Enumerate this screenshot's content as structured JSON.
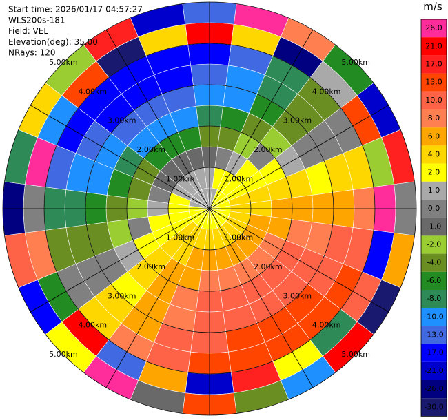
{
  "chart_data": {
    "type": "ppi",
    "header": [
      "Start time: 2026/01/17 04:57:27",
      "WLS200s-181",
      "Field: VEL",
      "Elevation(deg): 35.00",
      "NRays: 120"
    ],
    "unit": "m/s",
    "colorbar": {
      "ticks": [
        {
          "value": 26,
          "label": "26.0",
          "color": "#ff2d9b"
        },
        {
          "value": 21,
          "label": "21.0",
          "color": "#ff0000"
        },
        {
          "value": 17,
          "label": "17.0",
          "color": "#ff2020"
        },
        {
          "value": 13,
          "label": "13.0",
          "color": "#ff4500"
        },
        {
          "value": 10,
          "label": "10.0",
          "color": "#ff6347"
        },
        {
          "value": 8,
          "label": "8.0",
          "color": "#ff7f50"
        },
        {
          "value": 6,
          "label": "6.0",
          "color": "#ffa500"
        },
        {
          "value": 4,
          "label": "4.0",
          "color": "#ffd700"
        },
        {
          "value": 2,
          "label": "2.0",
          "color": "#ffff00"
        },
        {
          "value": 1,
          "label": "1.0",
          "color": "#a9a9a9"
        },
        {
          "value": 0,
          "label": "0.0",
          "color": "#808080"
        },
        {
          "value": -1,
          "label": "-1.0",
          "color": "#696969"
        },
        {
          "value": -2,
          "label": "-2.0",
          "color": "#9acd32"
        },
        {
          "value": -4,
          "label": "-4.0",
          "color": "#6b8e23"
        },
        {
          "value": -6,
          "label": "-6.0",
          "color": "#228b22"
        },
        {
          "value": -8,
          "label": "-8.0",
          "color": "#2e8b57"
        },
        {
          "value": -10,
          "label": "-10.0",
          "color": "#1e90ff"
        },
        {
          "value": -13,
          "label": "-13.0",
          "color": "#4169e1"
        },
        {
          "value": -17,
          "label": "-17.0",
          "color": "#0000ff"
        },
        {
          "value": -21,
          "label": "-21.0",
          "color": "#0000cd"
        },
        {
          "value": -26,
          "label": "-26.0",
          "color": "#000080"
        },
        {
          "value": -30,
          "label": "-30.0",
          "color": "#191970"
        }
      ]
    },
    "range_rings": [
      {
        "value": 1,
        "label": "1.00km"
      },
      {
        "value": 2,
        "label": "2.00km"
      },
      {
        "value": 3,
        "label": "3.00km"
      },
      {
        "value": 4,
        "label": "4.00km"
      },
      {
        "value": 5,
        "label": "5.00km"
      }
    ],
    "rmax": 5,
    "azimuths": [
      0,
      15,
      30,
      45,
      60,
      75,
      90,
      105,
      120,
      135,
      150,
      165,
      180,
      195,
      210,
      225,
      240,
      255,
      270,
      285,
      300,
      315,
      330,
      345
    ],
    "ranges": [
      0,
      0.5,
      1,
      1.5,
      2,
      2.5,
      3,
      3.5,
      4,
      4.5,
      5
    ],
    "values": [
      [
        1,
        1,
        -1,
        -4,
        -8,
        -10,
        -12,
        -14,
        21,
        -13
      ],
      [
        1,
        2,
        0,
        -3,
        -6,
        -9,
        -10,
        -11,
        4,
        26
      ],
      [
        2,
        2,
        1,
        -2,
        -4,
        -6,
        -7,
        -8,
        -26,
        8
      ],
      [
        2,
        3,
        2,
        0,
        -2,
        -3,
        -4,
        -4,
        1,
        -6
      ],
      [
        2,
        3,
        3,
        2,
        1,
        0,
        0,
        0,
        13,
        -21
      ],
      [
        2,
        4,
        4,
        4,
        4,
        3,
        4,
        4,
        -2,
        17
      ],
      [
        3,
        4,
        5,
        6,
        6,
        6,
        7,
        8,
        26,
        0
      ],
      [
        3,
        4,
        6,
        7,
        8,
        9,
        10,
        11,
        -17,
        6
      ],
      [
        3,
        5,
        6,
        8,
        10,
        10,
        12,
        14,
        10,
        -30
      ],
      [
        3,
        5,
        7,
        9,
        11,
        12,
        14,
        16,
        -8,
        21
      ],
      [
        3,
        5,
        7,
        9,
        11,
        12,
        14,
        16,
        2,
        -10
      ],
      [
        3,
        5,
        7,
        9,
        11,
        12,
        14,
        16,
        17,
        -4
      ],
      [
        3,
        5,
        6,
        8,
        10,
        10,
        12,
        14,
        -21,
        13
      ],
      [
        3,
        4,
        6,
        7,
        8,
        9,
        10,
        11,
        6,
        -1
      ],
      [
        3,
        4,
        5,
        6,
        6,
        6,
        7,
        8,
        -13,
        26
      ],
      [
        2,
        4,
        4,
        4,
        4,
        3,
        4,
        4,
        21,
        2
      ],
      [
        2,
        3,
        3,
        2,
        1,
        0,
        0,
        0,
        -6,
        -17
      ],
      [
        2,
        3,
        2,
        0,
        -2,
        -3,
        -4,
        -4,
        8,
        10
      ],
      [
        2,
        2,
        1,
        -2,
        -4,
        -6,
        -7,
        -8,
        0,
        -26
      ],
      [
        1,
        2,
        0,
        -3,
        -6,
        -9,
        -10,
        -11,
        26,
        -8
      ],
      [
        1,
        1,
        -1,
        -4,
        -8,
        -10,
        -12,
        -14,
        -10,
        4
      ],
      [
        1,
        1,
        -1,
        -5,
        -9,
        -12,
        -14,
        -16,
        13,
        -2
      ],
      [
        1,
        1,
        -1,
        -5,
        -9,
        -12,
        -14,
        -16,
        -30,
        17
      ],
      [
        1,
        1,
        -1,
        -5,
        -9,
        -12,
        -14,
        -16,
        4,
        -21
      ]
    ]
  }
}
